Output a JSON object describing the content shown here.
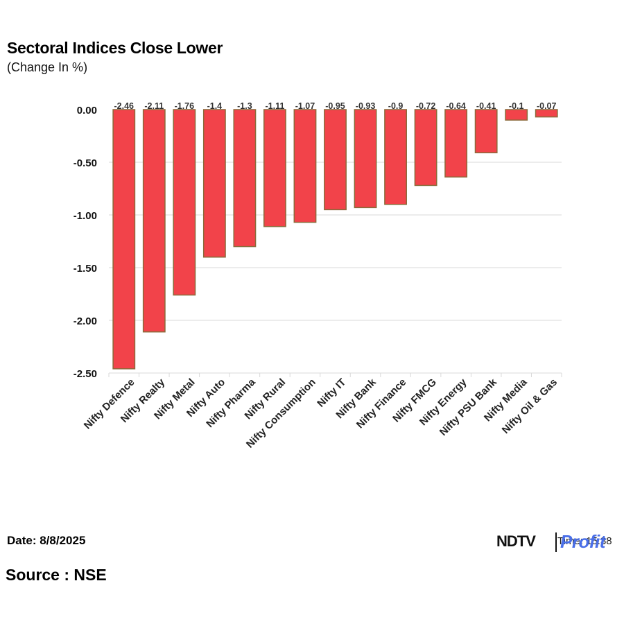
{
  "chart_data": {
    "type": "bar",
    "title": "Sectoral Indices Close Lower",
    "subtitle": "(Change In %)",
    "categories": [
      "Nifty Defence",
      "Nifty Realty",
      "Nifty Metal",
      "Nifty Auto",
      "Nifty Pharma",
      "Nifty Rural",
      "Nifty Consumption",
      "Nifty IT",
      "Nifty Bank",
      "Nifty Finance",
      "Nifty FMCG",
      "Nifty Energy",
      "Nifty PSU Bank",
      "Nifty Media",
      "Nifty Oil & Gas"
    ],
    "values": [
      -2.46,
      -2.11,
      -1.76,
      -1.4,
      -1.3,
      -1.11,
      -1.07,
      -0.95,
      -0.93,
      -0.9,
      -0.72,
      -0.64,
      -0.41,
      -0.1,
      -0.07
    ],
    "data_labels": [
      "-2.46",
      "-2.11",
      "-1.76",
      "-1.4",
      "-1.3",
      "-1.11",
      "-1.07",
      "-0.95",
      "-0.93",
      "-0.9",
      "-0.72",
      "-0.64",
      "-0.41",
      "-0.1",
      "-0.07"
    ],
    "y_ticks": [
      0,
      -0.5,
      -1,
      -1.5,
      -2,
      -2.5
    ],
    "y_tick_labels": [
      "0.00",
      "-0.50",
      "-1.00",
      "-1.50",
      "-2.00",
      "-2.50"
    ],
    "ylim": [
      -2.5,
      0
    ],
    "grid": true,
    "legend": "none",
    "bar_color": "#f2434a",
    "bar_edge_color": "#8a6a3a"
  },
  "footer": {
    "date": "Date: 8/8/2025",
    "source": "Source : NSE"
  },
  "branding": {
    "ndtv": "NDTV",
    "profit": "Profit",
    "timestamp": "Time: 15:38"
  }
}
